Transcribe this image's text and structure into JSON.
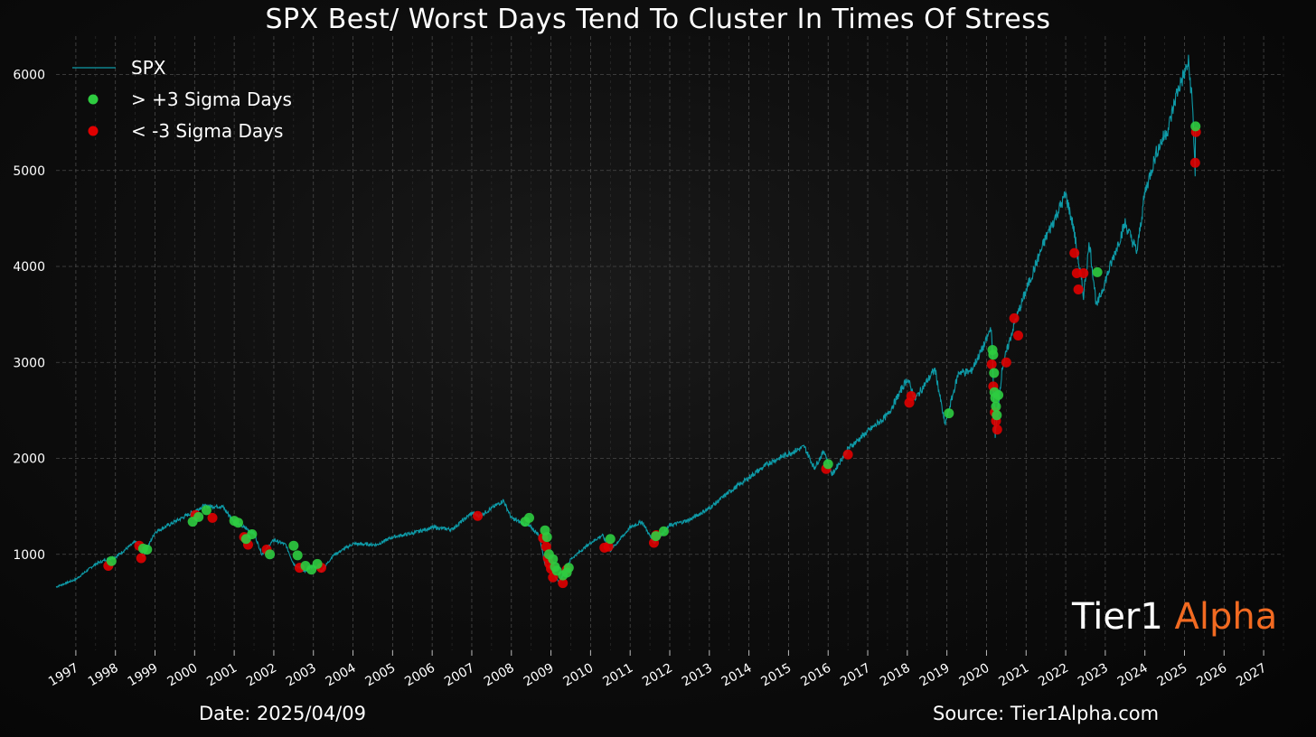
{
  "chart_data": {
    "type": "line",
    "title": "SPX Best/ Worst Days Tend To Cluster In Times Of Stress",
    "xlabel": "",
    "ylabel": "",
    "x_ticks": [
      "1997",
      "1998",
      "1999",
      "2000",
      "2001",
      "2002",
      "2003",
      "2004",
      "2005",
      "2006",
      "2007",
      "2008",
      "2009",
      "2010",
      "2011",
      "2012",
      "2013",
      "2014",
      "2015",
      "2016",
      "2017",
      "2018",
      "2019",
      "2020",
      "2021",
      "2022",
      "2023",
      "2024",
      "2025",
      "2026",
      "2027"
    ],
    "y_ticks": [
      1000,
      2000,
      3000,
      4000,
      5000,
      6000
    ],
    "xlim": [
      1996.5,
      2027.5
    ],
    "ylim": [
      0,
      6400
    ],
    "grid": true,
    "legend_position": "top-left",
    "colors": {
      "line": "#0e9aa7",
      "up": "#2ecc40",
      "down": "#e00000"
    },
    "series": [
      {
        "name": "SPX",
        "points": [
          [
            1996.5,
            660
          ],
          [
            1997.0,
            740
          ],
          [
            1997.5,
            900
          ],
          [
            1997.8,
            950
          ],
          [
            1998.0,
            970
          ],
          [
            1998.5,
            1130
          ],
          [
            1998.6,
            1100
          ],
          [
            1998.7,
            980
          ],
          [
            1999.0,
            1230
          ],
          [
            1999.5,
            1340
          ],
          [
            2000.0,
            1450
          ],
          [
            2000.2,
            1500
          ],
          [
            2000.7,
            1500
          ],
          [
            2001.0,
            1340
          ],
          [
            2001.5,
            1220
          ],
          [
            2001.7,
            1000
          ],
          [
            2002.0,
            1150
          ],
          [
            2002.3,
            1100
          ],
          [
            2002.5,
            900
          ],
          [
            2002.8,
            820
          ],
          [
            2003.0,
            880
          ],
          [
            2003.2,
            820
          ],
          [
            2003.5,
            990
          ],
          [
            2004.0,
            1110
          ],
          [
            2004.6,
            1100
          ],
          [
            2005.0,
            1180
          ],
          [
            2005.5,
            1220
          ],
          [
            2006.0,
            1280
          ],
          [
            2006.5,
            1260
          ],
          [
            2007.0,
            1430
          ],
          [
            2007.2,
            1400
          ],
          [
            2007.8,
            1560
          ],
          [
            2008.0,
            1380
          ],
          [
            2008.5,
            1280
          ],
          [
            2008.7,
            1200
          ],
          [
            2008.85,
            900
          ],
          [
            2009.0,
            860
          ],
          [
            2009.2,
            700
          ],
          [
            2009.5,
            950
          ],
          [
            2010.0,
            1120
          ],
          [
            2010.3,
            1200
          ],
          [
            2010.5,
            1040
          ],
          [
            2011.0,
            1280
          ],
          [
            2011.3,
            1340
          ],
          [
            2011.6,
            1120
          ],
          [
            2012.0,
            1300
          ],
          [
            2012.5,
            1360
          ],
          [
            2013.0,
            1480
          ],
          [
            2013.5,
            1650
          ],
          [
            2014.0,
            1800
          ],
          [
            2014.5,
            1950
          ],
          [
            2015.0,
            2050
          ],
          [
            2015.4,
            2120
          ],
          [
            2015.65,
            1900
          ],
          [
            2015.9,
            2080
          ],
          [
            2016.1,
            1830
          ],
          [
            2016.5,
            2100
          ],
          [
            2017.0,
            2280
          ],
          [
            2017.5,
            2450
          ],
          [
            2018.0,
            2830
          ],
          [
            2018.2,
            2620
          ],
          [
            2018.7,
            2930
          ],
          [
            2018.95,
            2350
          ],
          [
            2019.3,
            2900
          ],
          [
            2019.6,
            2900
          ],
          [
            2020.0,
            3230
          ],
          [
            2020.12,
            3380
          ],
          [
            2020.22,
            2240
          ],
          [
            2020.4,
            2950
          ],
          [
            2020.7,
            3400
          ],
          [
            2021.0,
            3750
          ],
          [
            2021.5,
            4300
          ],
          [
            2022.0,
            4750
          ],
          [
            2022.2,
            4400
          ],
          [
            2022.45,
            3700
          ],
          [
            2022.6,
            4250
          ],
          [
            2022.78,
            3580
          ],
          [
            2023.0,
            3850
          ],
          [
            2023.5,
            4450
          ],
          [
            2023.8,
            4150
          ],
          [
            2024.0,
            4770
          ],
          [
            2024.3,
            5200
          ],
          [
            2024.6,
            5450
          ],
          [
            2024.8,
            5800
          ],
          [
            2025.1,
            6120
          ],
          [
            2025.2,
            5700
          ],
          [
            2025.27,
            4980
          ],
          [
            2025.28,
            5450
          ]
        ]
      },
      {
        "name": "> +3 Sigma Days",
        "points": [
          [
            1997.9,
            930
          ],
          [
            1998.7,
            1060
          ],
          [
            1998.8,
            1050
          ],
          [
            1999.95,
            1340
          ],
          [
            2000.1,
            1390
          ],
          [
            2000.3,
            1460
          ],
          [
            2001.0,
            1350
          ],
          [
            2001.1,
            1330
          ],
          [
            2001.3,
            1160
          ],
          [
            2001.45,
            1210
          ],
          [
            2001.9,
            1000
          ],
          [
            2002.5,
            1090
          ],
          [
            2002.6,
            990
          ],
          [
            2002.8,
            880
          ],
          [
            2002.95,
            840
          ],
          [
            2003.1,
            900
          ],
          [
            2008.35,
            1340
          ],
          [
            2008.45,
            1380
          ],
          [
            2008.85,
            1250
          ],
          [
            2008.9,
            1180
          ],
          [
            2008.95,
            1000
          ],
          [
            2009.05,
            950
          ],
          [
            2009.1,
            870
          ],
          [
            2009.15,
            830
          ],
          [
            2009.3,
            780
          ],
          [
            2009.4,
            810
          ],
          [
            2009.45,
            860
          ],
          [
            2010.5,
            1160
          ],
          [
            2011.65,
            1190
          ],
          [
            2011.85,
            1240
          ],
          [
            2016.0,
            1940
          ],
          [
            2019.05,
            2470
          ],
          [
            2020.15,
            3130
          ],
          [
            2020.17,
            3080
          ],
          [
            2020.19,
            2890
          ],
          [
            2020.2,
            2690
          ],
          [
            2020.22,
            2630
          ],
          [
            2020.24,
            2540
          ],
          [
            2020.26,
            2450
          ],
          [
            2020.3,
            2660
          ],
          [
            2022.8,
            3940
          ],
          [
            2025.28,
            5460
          ]
        ]
      },
      {
        "name": "< -3 Sigma Days",
        "points": [
          [
            1997.82,
            880
          ],
          [
            1998.6,
            1090
          ],
          [
            1998.65,
            960
          ],
          [
            2000.02,
            1410
          ],
          [
            2000.45,
            1380
          ],
          [
            2001.25,
            1180
          ],
          [
            2001.35,
            1100
          ],
          [
            2001.82,
            1050
          ],
          [
            2002.65,
            860
          ],
          [
            2003.2,
            860
          ],
          [
            2007.15,
            1400
          ],
          [
            2008.8,
            1170
          ],
          [
            2008.88,
            1080
          ],
          [
            2008.92,
            960
          ],
          [
            2008.96,
            900
          ],
          [
            2009.0,
            850
          ],
          [
            2009.05,
            760
          ],
          [
            2009.3,
            700
          ],
          [
            2009.4,
            840
          ],
          [
            2010.35,
            1070
          ],
          [
            2010.45,
            1080
          ],
          [
            2011.6,
            1120
          ],
          [
            2011.66,
            1200
          ],
          [
            2015.95,
            1890
          ],
          [
            2016.5,
            2040
          ],
          [
            2018.05,
            2580
          ],
          [
            2018.1,
            2650
          ],
          [
            2020.13,
            2980
          ],
          [
            2020.17,
            2750
          ],
          [
            2020.21,
            2480
          ],
          [
            2020.24,
            2390
          ],
          [
            2020.27,
            2300
          ],
          [
            2020.5,
            3000
          ],
          [
            2020.7,
            3460
          ],
          [
            2020.8,
            3280
          ],
          [
            2022.22,
            4140
          ],
          [
            2022.28,
            3930
          ],
          [
            2022.32,
            3760
          ],
          [
            2022.45,
            3930
          ],
          [
            2025.27,
            5080
          ],
          [
            2025.29,
            5400
          ]
        ]
      }
    ],
    "legend": [
      {
        "label": "SPX",
        "marker": "line",
        "color": "#0e9aa7"
      },
      {
        "label": "> +3 Sigma Days",
        "marker": "dot",
        "color": "#2ecc40"
      },
      {
        "label": "< -3 Sigma Days",
        "marker": "dot",
        "color": "#e00000"
      }
    ]
  },
  "brand": {
    "part1": "Tier1",
    "part2": "Alpha"
  },
  "footer": {
    "date": "Date: 2025/04/09",
    "source": "Source: Tier1Alpha.com"
  }
}
